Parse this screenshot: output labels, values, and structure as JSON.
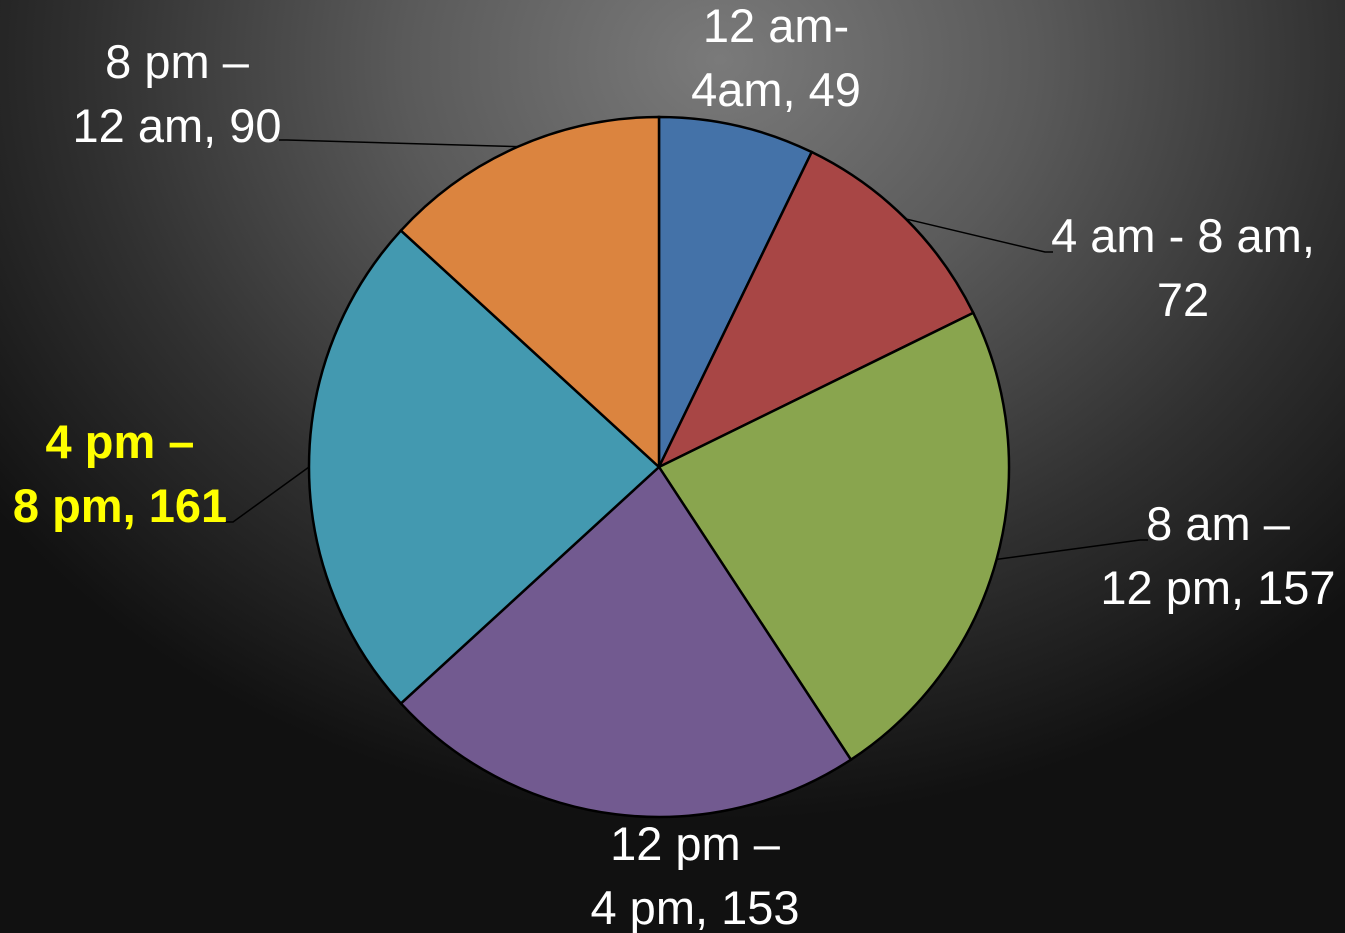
{
  "chart_data": {
    "type": "pie",
    "title": "",
    "highlight_color": "#ffff00",
    "label_color": "#ffffff",
    "slices": [
      {
        "label_lines": [
          "12 am-",
          "4am, 49"
        ],
        "value": 49,
        "color": "#4472a8",
        "highlight": false
      },
      {
        "label_lines": [
          "4 am - 8 am,",
          "72"
        ],
        "value": 72,
        "color": "#a84645",
        "highlight": false
      },
      {
        "label_lines": [
          "8 am –",
          "12 pm, 157"
        ],
        "value": 157,
        "color": "#89a54e",
        "highlight": false
      },
      {
        "label_lines": [
          "12 pm –",
          "4 pm, 153"
        ],
        "value": 153,
        "color": "#725a90",
        "highlight": false
      },
      {
        "label_lines": [
          "4 pm –",
          "8 pm, 161"
        ],
        "value": 161,
        "color": "#4399b0",
        "highlight": true
      },
      {
        "label_lines": [
          "8 pm –",
          "12 am, 90"
        ],
        "value": 90,
        "color": "#db843f",
        "highlight": false
      }
    ]
  }
}
